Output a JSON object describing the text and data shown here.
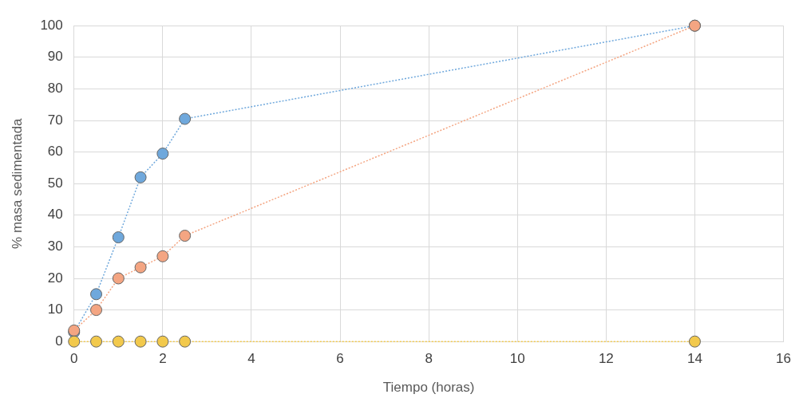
{
  "chart_data": {
    "type": "line",
    "xlabel": "Tiempo (horas)",
    "ylabel": "% masa sedimentada",
    "x": [
      0,
      0.5,
      1,
      1.5,
      2,
      2.5,
      14
    ],
    "series": [
      {
        "color": "#6fa8dc",
        "values": [
          3,
          15,
          33,
          52,
          59.5,
          70.5,
          100
        ]
      },
      {
        "color": "#f4a582",
        "values": [
          3.5,
          10,
          20,
          23.5,
          27,
          33.5,
          100
        ]
      },
      {
        "color": "#f2c94c",
        "values": [
          0,
          0,
          0,
          0,
          0,
          0,
          0
        ]
      }
    ],
    "xlim": [
      0,
      16
    ],
    "xticks": [
      0,
      2,
      4,
      6,
      8,
      10,
      12,
      14,
      16
    ],
    "ylim": [
      0,
      100
    ],
    "yticks": [
      0,
      10,
      20,
      30,
      40,
      50,
      60,
      70,
      80,
      90,
      100
    ],
    "grid": true,
    "legend": false,
    "marker": "circle",
    "line_style": "dotted"
  }
}
